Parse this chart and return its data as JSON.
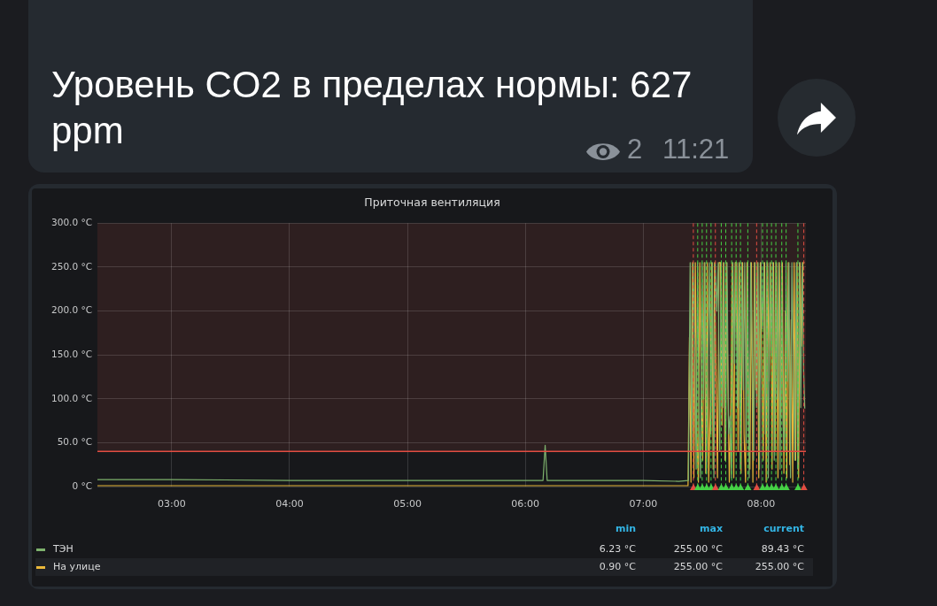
{
  "chart_data": {
    "type": "line",
    "title": "Приточная вентиляция",
    "subtitle": "Уровень CO2 в пределах нормы: 627 ppm",
    "annotations": [
      "2",
      "11:21",
      "min",
      "max",
      "current",
      "6.23 °C",
      "255.00 °C",
      "89.43 °C",
      "0.90 °C",
      "255.00 °C",
      "255.00 °C"
    ],
    "xlim": [
      2.37,
      8.38
    ],
    "xticks": [
      {
        "value": 3,
        "label": "03:00"
      },
      {
        "value": 4,
        "label": "04:00"
      },
      {
        "value": 5,
        "label": "05:00"
      },
      {
        "value": 6,
        "label": "06:00"
      },
      {
        "value": 7,
        "label": "07:00"
      },
      {
        "value": 8,
        "label": "08:00"
      }
    ],
    "ylim": [
      0,
      300
    ],
    "yticks": [
      {
        "value": 0,
        "label": "0 °C"
      },
      {
        "value": 50,
        "label": "50.0 °C"
      },
      {
        "value": 100,
        "label": "100.0 °C"
      },
      {
        "value": 150,
        "label": "150.0 °C"
      },
      {
        "value": 200,
        "label": "200.0 °C"
      },
      {
        "value": 250,
        "label": "250.0 °C"
      },
      {
        "value": 300,
        "label": "300.0 °C"
      }
    ],
    "grid": true,
    "legend": "bottom",
    "bands": [
      {
        "axis": "y",
        "from": 40,
        "to": 300,
        "color": "#2e1f20"
      }
    ],
    "ref_lines": [
      {
        "axis": "y",
        "value": 40,
        "color": "#e24d42"
      },
      {
        "axis": "x",
        "value": 7.425,
        "color": "#e24d42",
        "line_style": "dashed"
      },
      {
        "axis": "x",
        "value": 7.462,
        "color": "#45d245",
        "line_style": "dashed"
      },
      {
        "axis": "x",
        "value": 7.5,
        "color": "#45d245",
        "line_style": "dashed"
      },
      {
        "axis": "x",
        "value": 7.537,
        "color": "#45d245",
        "line_style": "dashed"
      },
      {
        "axis": "x",
        "value": 7.575,
        "color": "#45d245",
        "line_style": "dashed"
      },
      {
        "axis": "x",
        "value": 7.612,
        "color": "#e24d42",
        "line_style": "dashed"
      },
      {
        "axis": "x",
        "value": 7.662,
        "color": "#45d245",
        "line_style": "dashed"
      },
      {
        "axis": "x",
        "value": 7.7,
        "color": "#45d245",
        "line_style": "dashed"
      },
      {
        "axis": "x",
        "value": 7.75,
        "color": "#45d245",
        "line_style": "dashed"
      },
      {
        "axis": "x",
        "value": 7.788,
        "color": "#45d245",
        "line_style": "dashed"
      },
      {
        "axis": "x",
        "value": 7.825,
        "color": "#45d245",
        "line_style": "dashed"
      },
      {
        "axis": "x",
        "value": 7.887,
        "color": "#45d245",
        "line_style": "dashed"
      },
      {
        "axis": "x",
        "value": 7.962,
        "color": "#e24d42",
        "line_style": "dashed"
      },
      {
        "axis": "x",
        "value": 8.012,
        "color": "#45d245",
        "line_style": "dashed"
      },
      {
        "axis": "x",
        "value": 8.05,
        "color": "#45d245",
        "line_style": "dashed"
      },
      {
        "axis": "x",
        "value": 8.088,
        "color": "#45d245",
        "line_style": "dashed"
      },
      {
        "axis": "x",
        "value": 8.125,
        "color": "#45d245",
        "line_style": "dashed"
      },
      {
        "axis": "x",
        "value": 8.175,
        "color": "#45d245",
        "line_style": "dashed"
      },
      {
        "axis": "x",
        "value": 8.212,
        "color": "#45d245",
        "line_style": "dashed"
      },
      {
        "axis": "x",
        "value": 8.312,
        "color": "#45d245",
        "line_style": "dashed"
      },
      {
        "axis": "x",
        "value": 8.362,
        "color": "#e24d42",
        "line_style": "dashed"
      }
    ],
    "series": [
      {
        "name": "ТЭН",
        "color": "#7eb26d",
        "x": [
          2.37,
          3.0,
          4.0,
          5.0,
          6.0,
          6.15,
          6.168,
          6.185,
          7.0,
          7.3,
          7.383,
          7.398,
          7.411,
          7.424,
          7.436,
          7.449,
          7.461,
          7.474,
          7.486,
          7.499,
          7.511,
          7.524,
          7.536,
          7.549,
          7.561,
          7.574,
          7.586,
          7.599,
          7.611,
          7.624,
          7.636,
          7.649,
          7.661,
          7.674,
          7.686,
          7.699,
          7.711,
          7.724,
          7.736,
          7.749,
          7.761,
          7.774,
          7.786,
          7.799,
          7.811,
          7.824,
          7.836,
          7.849,
          7.861,
          7.874,
          7.886,
          7.899,
          7.911,
          7.924,
          7.936,
          7.949,
          7.961,
          7.974,
          7.986,
          7.999,
          8.011,
          8.024,
          8.036,
          8.049,
          8.061,
          8.074,
          8.086,
          8.099,
          8.111,
          8.124,
          8.136,
          8.149,
          8.161,
          8.174,
          8.186,
          8.199,
          8.211,
          8.224,
          8.236,
          8.249,
          8.261,
          8.274,
          8.286,
          8.299,
          8.311,
          8.324,
          8.336,
          8.349,
          8.361,
          8.37
        ],
        "values": [
          8,
          8,
          7,
          7,
          7,
          7,
          47,
          7,
          7,
          6,
          7,
          255,
          40,
          255,
          170,
          20,
          255,
          70,
          10,
          255,
          100,
          255,
          15,
          150,
          255,
          60,
          255,
          10,
          255,
          200,
          255,
          40,
          255,
          90,
          255,
          30,
          255,
          60,
          80,
          10,
          255,
          140,
          255,
          90,
          255,
          20,
          255,
          110,
          255,
          50,
          255,
          10,
          255,
          160,
          30,
          255,
          90,
          255,
          20,
          255,
          180,
          255,
          60,
          255,
          10,
          255,
          150,
          255,
          30,
          255,
          100,
          255,
          20,
          255,
          70,
          40,
          255,
          120,
          255,
          10,
          255,
          140,
          30,
          255,
          20,
          255,
          90,
          255,
          130,
          89
        ]
      },
      {
        "name": "На улице",
        "color": "#eab839",
        "x": [
          2.37,
          4.0,
          5.0,
          6.0,
          7.0,
          7.38,
          7.392,
          7.405,
          7.418,
          7.43,
          7.442,
          7.455,
          7.468,
          7.48,
          7.492,
          7.505,
          7.518,
          7.53,
          7.543,
          7.555,
          7.568,
          7.58,
          7.593,
          7.605,
          7.618,
          7.63,
          7.643,
          7.655,
          7.668,
          7.68,
          7.693,
          7.705,
          7.718,
          7.73,
          7.743,
          7.755,
          7.768,
          7.78,
          7.793,
          7.805,
          7.818,
          7.83,
          7.843,
          7.855,
          7.868,
          7.88,
          7.893,
          7.905,
          7.918,
          7.93,
          7.943,
          7.955,
          7.968,
          7.98,
          7.993,
          8.005,
          8.018,
          8.03,
          8.043,
          8.055,
          8.068,
          8.08,
          8.093,
          8.105,
          8.118,
          8.13,
          8.143,
          8.155,
          8.168,
          8.18,
          8.193,
          8.205,
          8.218,
          8.23,
          8.243,
          8.255,
          8.268,
          8.28,
          8.293,
          8.305,
          8.318,
          8.33,
          8.343,
          8.355,
          8.368
        ],
        "values": [
          1,
          1,
          1,
          1,
          1,
          1,
          170,
          5,
          255,
          10,
          255,
          60,
          5,
          255,
          120,
          30,
          255,
          15,
          255,
          5,
          90,
          255,
          20,
          255,
          130,
          10,
          255,
          255,
          70,
          255,
          30,
          255,
          120,
          5,
          100,
          255,
          10,
          255,
          255,
          40,
          255,
          15,
          255,
          60,
          5,
          255,
          80,
          20,
          255,
          5,
          255,
          110,
          255,
          10,
          255,
          150,
          30,
          255,
          5,
          255,
          120,
          255,
          20,
          255,
          40,
          255,
          10,
          255,
          80,
          255,
          15,
          200,
          10,
          255,
          25,
          190,
          5,
          255,
          30,
          255,
          10,
          255,
          160,
          255,
          255
        ]
      }
    ]
  }
}
